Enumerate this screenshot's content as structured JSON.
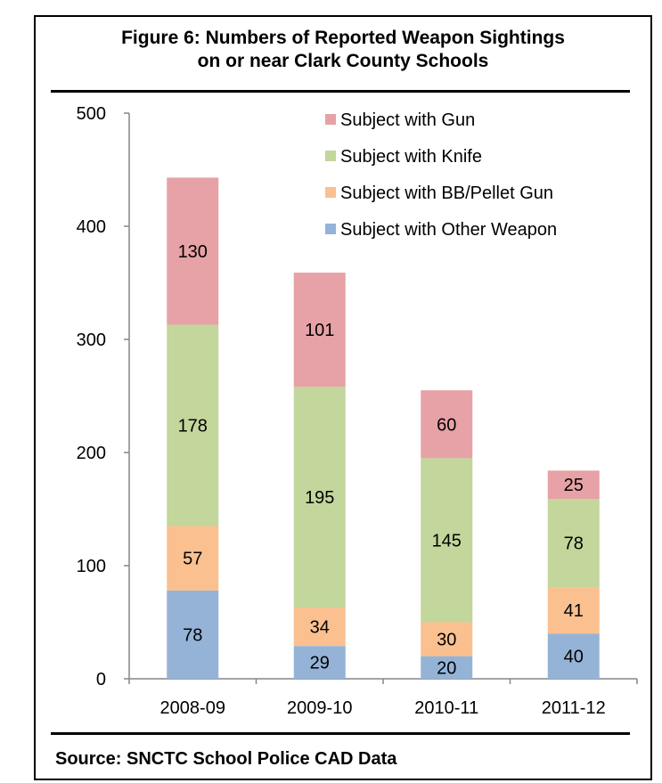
{
  "figure_title_line1": "Figure 6: Numbers of Reported Weapon Sightings",
  "figure_title_line2": "on or near Clark County Schools",
  "source_text": "Source: SNCTC School Police CAD Data",
  "chart_data": {
    "type": "bar",
    "stacked": true,
    "categories": [
      "2008-09",
      "2009-10",
      "2010-11",
      "2011-12"
    ],
    "series": [
      {
        "name": "Subject with Other Weapon",
        "values": [
          78,
          29,
          20,
          40
        ],
        "color": "#95b3d7"
      },
      {
        "name": "Subject with BB/Pellet Gun",
        "values": [
          57,
          34,
          30,
          41
        ],
        "color": "#fac090"
      },
      {
        "name": "Subject with Knife",
        "values": [
          178,
          195,
          145,
          78
        ],
        "color": "#c3d69b"
      },
      {
        "name": "Subject with Gun",
        "values": [
          130,
          101,
          60,
          25
        ],
        "color": "#e6a2a6"
      }
    ],
    "legend_order": [
      "Subject with Gun",
      "Subject with Knife",
      "Subject with BB/Pellet Gun",
      "Subject with Other Weapon"
    ],
    "yticks": [
      0,
      100,
      200,
      300,
      400,
      500
    ],
    "ylim": [
      0,
      500
    ],
    "grid": false,
    "legend_position": "top-right"
  }
}
